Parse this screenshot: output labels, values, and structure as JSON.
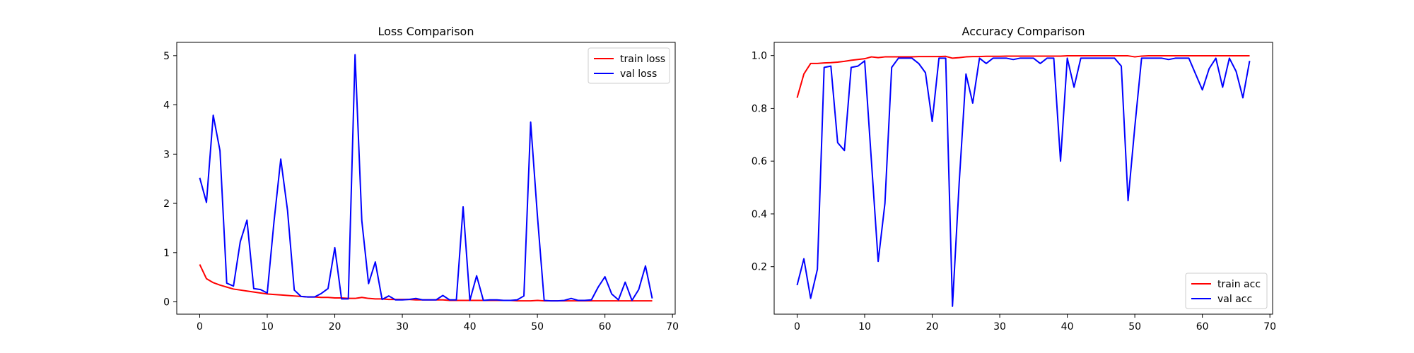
{
  "chart_data": [
    {
      "type": "line",
      "title": "Loss Comparison",
      "xlabel": "",
      "ylabel": "",
      "xlim": [
        -3.4,
        70.4
      ],
      "ylim": [
        -0.25,
        5.27
      ],
      "xticks": [
        0,
        10,
        20,
        30,
        40,
        50,
        60,
        70
      ],
      "yticks": [
        0,
        1,
        2,
        3,
        4,
        5
      ],
      "grid": false,
      "legend": "top-right",
      "series": [
        {
          "name": "train loss",
          "color": "#ff0000",
          "x": [
            0,
            1,
            2,
            3,
            4,
            5,
            6,
            7,
            8,
            9,
            10,
            11,
            12,
            13,
            14,
            15,
            16,
            17,
            18,
            19,
            20,
            21,
            22,
            23,
            24,
            25,
            26,
            27,
            28,
            29,
            30,
            31,
            32,
            33,
            34,
            35,
            36,
            37,
            38,
            39,
            40,
            41,
            42,
            43,
            44,
            45,
            46,
            47,
            48,
            49,
            50,
            51,
            52,
            53,
            54,
            55,
            56,
            57,
            58,
            59,
            60,
            61,
            62,
            63,
            64,
            65,
            66,
            67
          ],
          "values": [
            0.76,
            0.47,
            0.39,
            0.34,
            0.3,
            0.26,
            0.24,
            0.22,
            0.2,
            0.18,
            0.16,
            0.15,
            0.14,
            0.13,
            0.12,
            0.11,
            0.1,
            0.1,
            0.09,
            0.09,
            0.08,
            0.08,
            0.07,
            0.07,
            0.09,
            0.07,
            0.06,
            0.06,
            0.05,
            0.05,
            0.05,
            0.05,
            0.04,
            0.04,
            0.04,
            0.04,
            0.04,
            0.03,
            0.03,
            0.03,
            0.03,
            0.03,
            0.03,
            0.03,
            0.03,
            0.03,
            0.03,
            0.02,
            0.02,
            0.02,
            0.03,
            0.02,
            0.02,
            0.02,
            0.02,
            0.02,
            0.02,
            0.02,
            0.02,
            0.02,
            0.02,
            0.02,
            0.02,
            0.02,
            0.02,
            0.02,
            0.02,
            0.02
          ]
        },
        {
          "name": "val loss",
          "color": "#0000ff",
          "x": [
            0,
            1,
            2,
            3,
            4,
            5,
            6,
            7,
            8,
            9,
            10,
            11,
            12,
            13,
            14,
            15,
            16,
            17,
            18,
            19,
            20,
            21,
            22,
            23,
            24,
            25,
            26,
            27,
            28,
            29,
            30,
            31,
            32,
            33,
            34,
            35,
            36,
            37,
            38,
            39,
            40,
            41,
            42,
            43,
            44,
            45,
            46,
            47,
            48,
            49,
            50,
            51,
            52,
            53,
            54,
            55,
            56,
            57,
            58,
            59,
            60,
            61,
            62,
            63,
            64,
            65,
            66,
            67
          ],
          "values": [
            2.52,
            2.02,
            3.79,
            3.07,
            0.38,
            0.32,
            1.22,
            1.66,
            0.27,
            0.25,
            0.18,
            1.63,
            2.9,
            1.86,
            0.24,
            0.11,
            0.1,
            0.1,
            0.17,
            0.27,
            1.1,
            0.06,
            0.06,
            5.02,
            1.65,
            0.37,
            0.81,
            0.05,
            0.12,
            0.04,
            0.04,
            0.05,
            0.07,
            0.04,
            0.04,
            0.04,
            0.13,
            0.04,
            0.04,
            1.93,
            0.03,
            0.53,
            0.03,
            0.04,
            0.04,
            0.03,
            0.03,
            0.04,
            0.12,
            3.65,
            1.75,
            0.03,
            0.02,
            0.02,
            0.03,
            0.07,
            0.03,
            0.03,
            0.04,
            0.3,
            0.51,
            0.16,
            0.04,
            0.4,
            0.03,
            0.25,
            0.73,
            0.07
          ]
        }
      ]
    },
    {
      "type": "line",
      "title": "Accuracy Comparison",
      "xlabel": "",
      "ylabel": "",
      "xlim": [
        -3.4,
        70.4
      ],
      "ylim": [
        0.02,
        1.05
      ],
      "xticks": [
        0,
        10,
        20,
        30,
        40,
        50,
        60,
        70
      ],
      "yticks": [
        0.2,
        0.4,
        0.6,
        0.8,
        1.0
      ],
      "yticklabels": [
        "0.2",
        "0.4",
        "0.6",
        "0.8",
        "1.0"
      ],
      "grid": false,
      "legend": "bottom-right",
      "series": [
        {
          "name": "train acc",
          "color": "#ff0000",
          "x": [
            0,
            1,
            2,
            3,
            4,
            5,
            6,
            7,
            8,
            9,
            10,
            11,
            12,
            13,
            14,
            15,
            16,
            17,
            18,
            19,
            20,
            21,
            22,
            23,
            24,
            25,
            26,
            27,
            28,
            29,
            30,
            31,
            32,
            33,
            34,
            35,
            36,
            37,
            38,
            39,
            40,
            41,
            42,
            43,
            44,
            45,
            46,
            47,
            48,
            49,
            50,
            51,
            52,
            53,
            54,
            55,
            56,
            57,
            58,
            59,
            60,
            61,
            62,
            63,
            64,
            65,
            66,
            67
          ],
          "values": [
            0.84,
            0.93,
            0.97,
            0.97,
            0.972,
            0.973,
            0.975,
            0.978,
            0.982,
            0.985,
            0.988,
            0.995,
            0.992,
            0.995,
            0.995,
            0.995,
            0.995,
            0.995,
            0.996,
            0.996,
            0.996,
            0.996,
            0.997,
            0.99,
            0.992,
            0.995,
            0.996,
            0.996,
            0.997,
            0.997,
            0.997,
            0.998,
            0.998,
            0.998,
            0.998,
            0.998,
            0.998,
            0.998,
            0.998,
            0.998,
            0.999,
            0.999,
            0.999,
            0.999,
            0.999,
            0.999,
            0.999,
            0.999,
            0.999,
            0.999,
            0.995,
            0.998,
            0.999,
            0.999,
            0.999,
            0.999,
            0.999,
            0.999,
            0.999,
            0.999,
            0.999,
            0.999,
            0.999,
            0.999,
            0.999,
            0.999,
            0.999,
            0.999
          ]
        },
        {
          "name": "val acc",
          "color": "#0000ff",
          "x": [
            0,
            1,
            2,
            3,
            4,
            5,
            6,
            7,
            8,
            9,
            10,
            11,
            12,
            13,
            14,
            15,
            16,
            17,
            18,
            19,
            20,
            21,
            22,
            23,
            24,
            25,
            26,
            27,
            28,
            29,
            30,
            31,
            32,
            33,
            34,
            35,
            36,
            37,
            38,
            39,
            40,
            41,
            42,
            43,
            44,
            45,
            46,
            47,
            48,
            49,
            50,
            51,
            52,
            53,
            54,
            55,
            56,
            57,
            58,
            59,
            60,
            61,
            62,
            63,
            64,
            65,
            66,
            67
          ],
          "values": [
            0.13,
            0.23,
            0.08,
            0.19,
            0.955,
            0.96,
            0.67,
            0.64,
            0.955,
            0.96,
            0.98,
            0.6,
            0.22,
            0.44,
            0.955,
            0.99,
            0.99,
            0.99,
            0.97,
            0.935,
            0.75,
            0.99,
            0.99,
            0.05,
            0.52,
            0.93,
            0.82,
            0.99,
            0.97,
            0.99,
            0.99,
            0.99,
            0.985,
            0.99,
            0.99,
            0.99,
            0.97,
            0.99,
            0.99,
            0.6,
            0.99,
            0.88,
            0.99,
            0.99,
            0.99,
            0.99,
            0.99,
            0.99,
            0.96,
            0.45,
            0.73,
            0.99,
            0.99,
            0.99,
            0.99,
            0.985,
            0.99,
            0.99,
            0.99,
            0.93,
            0.87,
            0.95,
            0.99,
            0.88,
            0.99,
            0.94,
            0.84,
            0.98
          ]
        }
      ]
    }
  ]
}
